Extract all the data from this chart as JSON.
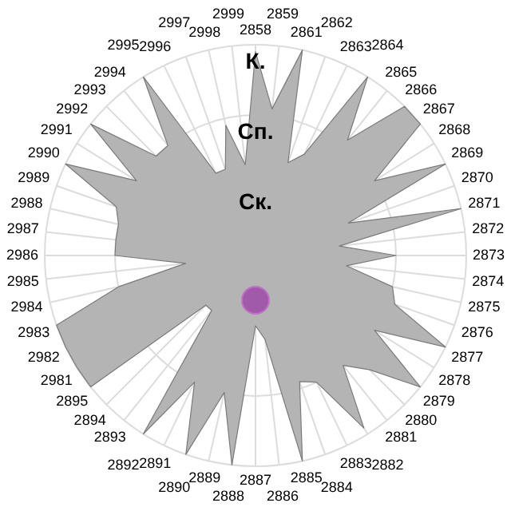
{
  "chart_data": {
    "type": "radar",
    "categories": [
      "2858",
      "2859",
      "2861",
      "2862",
      "2863",
      "2864",
      "2865",
      "2866",
      "2867",
      "2868",
      "2869",
      "2870",
      "2871",
      "2872",
      "2873",
      "2874",
      "2875",
      "2876",
      "2877",
      "2878",
      "2879",
      "2880",
      "2881",
      "2882",
      "2883",
      "2884",
      "2885",
      "2886",
      "2887",
      "2888",
      "2889",
      "2890",
      "2891",
      "2892",
      "2893",
      "2894",
      "2895",
      "2981",
      "2982",
      "2983",
      "2984",
      "2985",
      "2986",
      "2987",
      "2988",
      "2989",
      "2990",
      "2991",
      "2992",
      "2993",
      "2994",
      "2995",
      "2996",
      "2997",
      "2998",
      "2999"
    ],
    "series": [
      {
        "color": "#b4b4b4",
        "values": [
          2.9,
          2.1,
          3.0,
          1.4,
          1.6,
          3.0,
          2.1,
          3.0,
          3.0,
          2.0,
          3.0,
          1.4,
          3.0,
          1.2,
          2.0,
          1.3,
          2.0,
          2.1,
          3.0,
          2.0,
          3.0,
          2.3,
          2.0,
          2.9,
          2.0,
          1.9,
          3.0,
          1.2,
          1.0,
          3.0,
          2.0,
          3.0,
          2.0,
          3.0,
          1.0,
          1.0,
          3.0,
          3.0,
          3.0,
          3.0,
          2.0,
          1.0,
          2.0,
          2.0,
          2.0,
          2.1,
          3.0,
          2.0,
          3.0,
          2.0,
          2.0,
          3.0,
          1.3,
          1.3,
          1.9,
          1.3
        ]
      }
    ],
    "ylim": [
      0,
      3
    ],
    "yticks": [
      {
        "value": 1,
        "label": "Ск."
      },
      {
        "value": 2,
        "label": "Сп."
      },
      {
        "value": 3,
        "label": "К."
      }
    ],
    "grid": true,
    "legend": false,
    "marker": "none"
  }
}
